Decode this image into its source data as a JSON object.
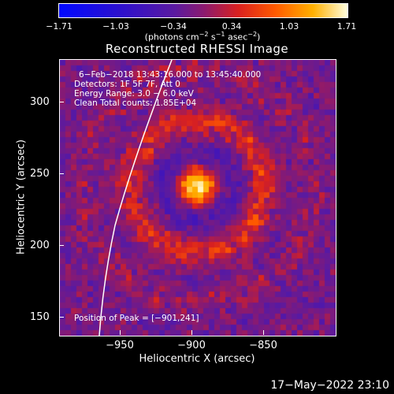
{
  "colorbar": {
    "ticks": [
      "−1.71",
      "−1.03",
      "−0.34",
      "0.34",
      "1.03",
      "1.71"
    ],
    "unit_main": "(photons cm",
    "unit_exp1": "−2",
    "unit_mid": " s",
    "unit_exp2": "−1",
    "unit_mid2": " asec",
    "unit_exp3": "−2",
    "unit_end": ")"
  },
  "title": "Reconstructed RHESSI Image",
  "info_lines": [
    "6−Feb−2018 13:43:16.000 to 13:45:40.000",
    "Detectors: 1F 5F 7F, Att 0",
    "Energy Range: 3.0 − 6.0 keV",
    "Clean     Total counts: 1.85E+04"
  ],
  "peak_label": "Position of Peak = [−901,241]",
  "axes": {
    "xlabel": "Heliocentric X (arcsec)",
    "ylabel": "Heliocentric Y (arcsec)",
    "xticks": [
      "−950",
      "−900",
      "−850"
    ],
    "yticks": [
      "300",
      "250",
      "200",
      "150"
    ]
  },
  "timestamp": "17−May−2022 23:10",
  "colors": {
    "limb": "#ffffff",
    "background": "#000000"
  }
}
